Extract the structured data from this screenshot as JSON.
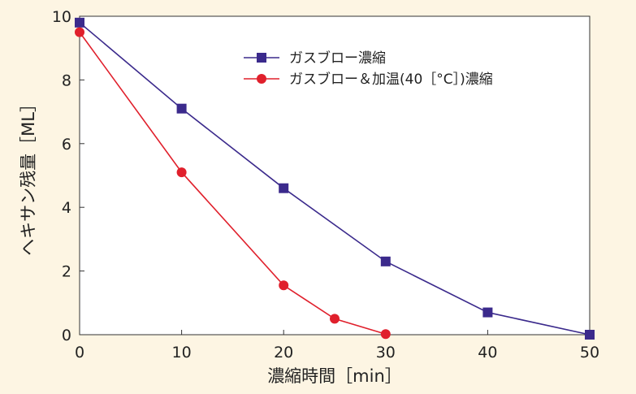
{
  "chart_data": {
    "type": "line",
    "xlabel": "濃縮時間［min］",
    "ylabel": "ヘキサン残量［ML］",
    "xlim": [
      0,
      50
    ],
    "ylim": [
      0,
      10
    ],
    "x_ticks": [
      "0",
      "10",
      "20",
      "30",
      "40",
      "50"
    ],
    "y_ticks": [
      "0",
      "2",
      "4",
      "6",
      "8",
      "10"
    ],
    "grid": false,
    "legend_position": "top-right",
    "series": [
      {
        "name": "ガスブロー濃縮",
        "color": "#3b2a8c",
        "marker": "square",
        "x": [
          0,
          10,
          20,
          30,
          40,
          50
        ],
        "y": [
          9.8,
          7.1,
          4.6,
          2.3,
          0.7,
          0.0
        ]
      },
      {
        "name": "ガスブロー＆加温(40［°C］)濃縮",
        "color": "#e0202c",
        "marker": "circle",
        "x": [
          0,
          10,
          20,
          25,
          30
        ],
        "y": [
          9.5,
          5.1,
          1.55,
          0.5,
          0.02
        ]
      }
    ]
  }
}
